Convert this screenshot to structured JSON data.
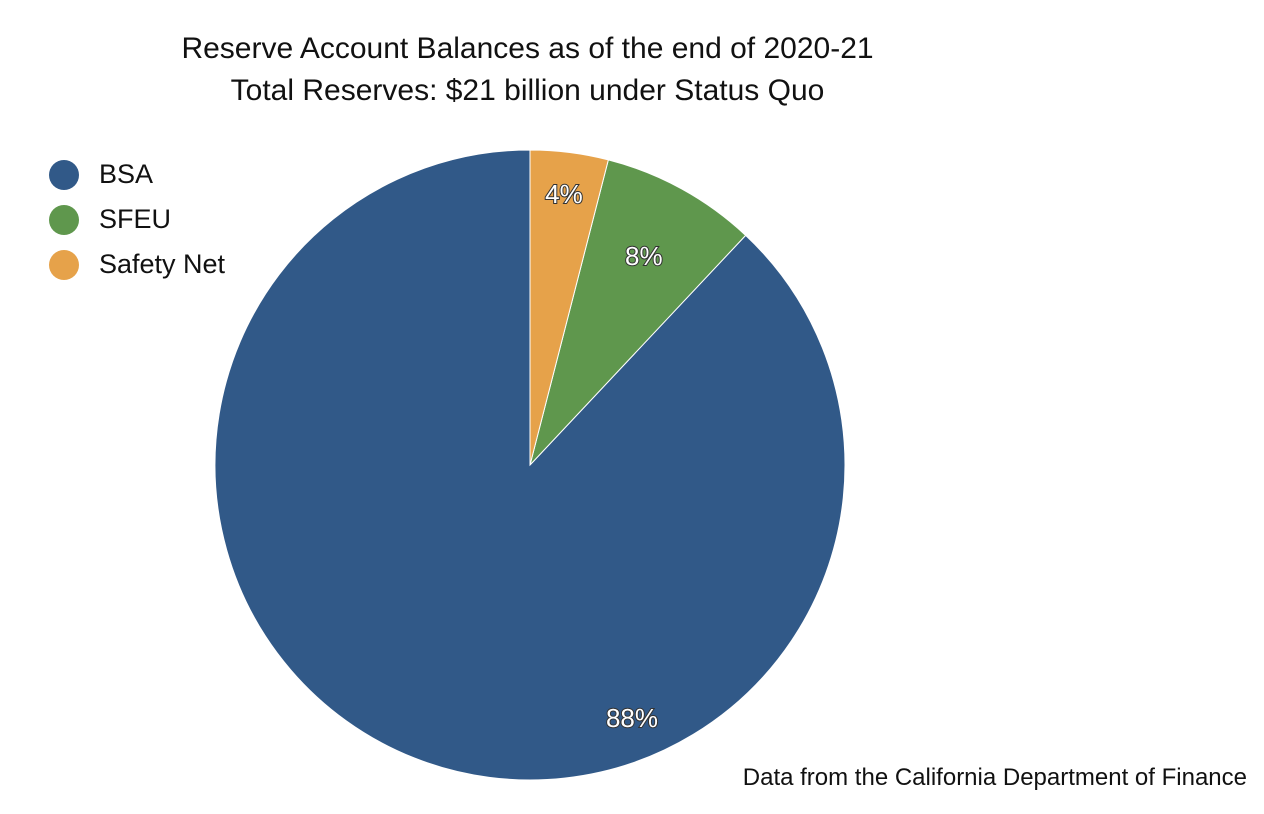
{
  "chart_data": {
    "type": "pie",
    "title": "Reserve Account Balances as of the end of 2020-21",
    "subtitle": "Total Reserves: $21 billion under Status Quo",
    "categories": [
      "BSA",
      "SFEU",
      "Safety Net"
    ],
    "values": [
      88,
      8,
      4
    ],
    "data_labels": [
      "88%",
      "8%",
      "4%"
    ],
    "colors": [
      "#315988",
      "#5F974D",
      "#E6A24A"
    ],
    "legend_position": "top-left",
    "source_note": "Data from the California Department of Finance"
  }
}
